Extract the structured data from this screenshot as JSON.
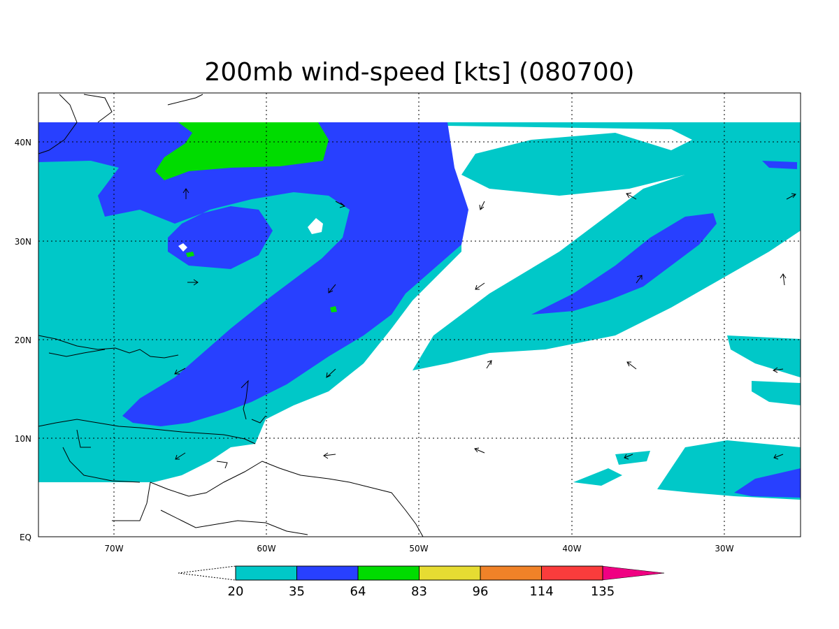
{
  "title": "200mb wind-speed [kts] (080700)",
  "map": {
    "lon_range": [
      -75,
      -25
    ],
    "lat_range": [
      0,
      45
    ],
    "x_ticks": [
      "70W",
      "60W",
      "50W",
      "40W",
      "30W"
    ],
    "y_ticks": [
      "EQ",
      "10N",
      "20N",
      "30N",
      "40N"
    ],
    "grid": "dotted",
    "region": "Tropical North Atlantic and Caribbean"
  },
  "legend": {
    "levels": [
      "20",
      "35",
      "64",
      "83",
      "96",
      "114",
      "135"
    ],
    "colors": [
      "#00c8c8",
      "#2840ff",
      "#00dc00",
      "#e6dc32",
      "#f08228",
      "#fa3c3c",
      "#f00082"
    ],
    "below_min_color": "#ffffff"
  },
  "colors": {
    "band_20_35": "#00c8c8",
    "band_35_64": "#2840ff",
    "band_64_83": "#00dc00",
    "coastline": "#000000"
  }
}
